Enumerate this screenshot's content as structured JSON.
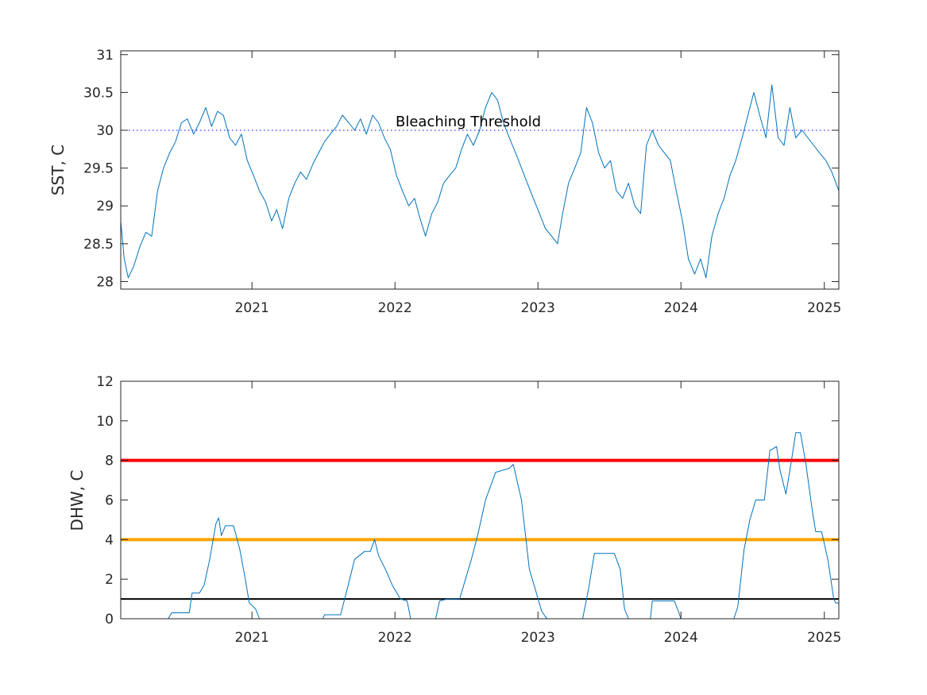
{
  "chart_data": [
    {
      "type": "line",
      "ylabel": "SST, C",
      "xlabel": "",
      "xlim": [
        "2020-02-01",
        "2025-02-07"
      ],
      "ylim": [
        27.9,
        31.05
      ],
      "yticks": [
        28,
        28.5,
        29,
        29.5,
        30,
        30.5,
        31
      ],
      "ytick_labels": [
        "28",
        "28.5",
        "29",
        "29.5",
        "30",
        "30.5",
        "31"
      ],
      "xticks": [
        "2021-01-01",
        "2022-01-01",
        "2023-01-01",
        "2024-01-01",
        "2025-01-01"
      ],
      "xtick_labels": [
        "2021",
        "2022",
        "2023",
        "2024",
        "2025"
      ],
      "grid": false,
      "threshold": {
        "y": 30,
        "style": "dotted",
        "color": "#0000ff",
        "label": "Bleaching Threshold"
      },
      "series": [
        {
          "color": "#0072bd",
          "points": [
            [
              "2020-02-01",
              28.8
            ],
            [
              "2020-02-10",
              28.3
            ],
            [
              "2020-02-20",
              28.05
            ],
            [
              "2020-03-05",
              28.2
            ],
            [
              "2020-03-20",
              28.45
            ],
            [
              "2020-04-05",
              28.65
            ],
            [
              "2020-04-20",
              28.6
            ],
            [
              "2020-05-05",
              29.2
            ],
            [
              "2020-05-20",
              29.5
            ],
            [
              "2020-06-05",
              29.7
            ],
            [
              "2020-06-20",
              29.85
            ],
            [
              "2020-07-05",
              30.1
            ],
            [
              "2020-07-20",
              30.15
            ],
            [
              "2020-08-05",
              29.95
            ],
            [
              "2020-08-20",
              30.1
            ],
            [
              "2020-09-05",
              30.3
            ],
            [
              "2020-09-20",
              30.05
            ],
            [
              "2020-10-05",
              30.25
            ],
            [
              "2020-10-20",
              30.2
            ],
            [
              "2020-11-05",
              29.9
            ],
            [
              "2020-11-20",
              29.8
            ],
            [
              "2020-12-05",
              29.95
            ],
            [
              "2020-12-20",
              29.6
            ],
            [
              "2021-01-05",
              29.4
            ],
            [
              "2021-01-20",
              29.2
            ],
            [
              "2021-02-05",
              29.05
            ],
            [
              "2021-02-20",
              28.8
            ],
            [
              "2021-03-05",
              28.95
            ],
            [
              "2021-03-20",
              28.7
            ],
            [
              "2021-04-05",
              29.1
            ],
            [
              "2021-04-20",
              29.3
            ],
            [
              "2021-05-05",
              29.45
            ],
            [
              "2021-05-20",
              29.35
            ],
            [
              "2021-06-05",
              29.55
            ],
            [
              "2021-06-20",
              29.7
            ],
            [
              "2021-07-05",
              29.85
            ],
            [
              "2021-07-20",
              29.95
            ],
            [
              "2021-08-05",
              30.05
            ],
            [
              "2021-08-20",
              30.2
            ],
            [
              "2021-09-05",
              30.1
            ],
            [
              "2021-09-20",
              30.0
            ],
            [
              "2021-10-05",
              30.15
            ],
            [
              "2021-10-20",
              29.95
            ],
            [
              "2021-11-05",
              30.2
            ],
            [
              "2021-11-20",
              30.1
            ],
            [
              "2021-12-05",
              29.9
            ],
            [
              "2021-12-20",
              29.75
            ],
            [
              "2022-01-05",
              29.4
            ],
            [
              "2022-01-20",
              29.2
            ],
            [
              "2022-02-05",
              29.0
            ],
            [
              "2022-02-20",
              29.1
            ],
            [
              "2022-03-05",
              28.85
            ],
            [
              "2022-03-20",
              28.6
            ],
            [
              "2022-04-05",
              28.9
            ],
            [
              "2022-04-20",
              29.05
            ],
            [
              "2022-05-05",
              29.3
            ],
            [
              "2022-05-20",
              29.4
            ],
            [
              "2022-06-05",
              29.5
            ],
            [
              "2022-06-20",
              29.75
            ],
            [
              "2022-07-05",
              29.95
            ],
            [
              "2022-07-20",
              29.8
            ],
            [
              "2022-08-05",
              30.0
            ],
            [
              "2022-08-20",
              30.3
            ],
            [
              "2022-09-05",
              30.5
            ],
            [
              "2022-09-20",
              30.4
            ],
            [
              "2022-10-05",
              30.1
            ],
            [
              "2022-10-20",
              29.9
            ],
            [
              "2022-11-05",
              29.7
            ],
            [
              "2022-11-20",
              29.5
            ],
            [
              "2022-12-05",
              29.3
            ],
            [
              "2022-12-20",
              29.1
            ],
            [
              "2023-01-05",
              28.9
            ],
            [
              "2023-01-20",
              28.7
            ],
            [
              "2023-02-05",
              28.6
            ],
            [
              "2023-02-20",
              28.5
            ],
            [
              "2023-03-05",
              28.9
            ],
            [
              "2023-03-20",
              29.3
            ],
            [
              "2023-04-05",
              29.5
            ],
            [
              "2023-04-20",
              29.7
            ],
            [
              "2023-05-05",
              30.3
            ],
            [
              "2023-05-20",
              30.1
            ],
            [
              "2023-06-05",
              29.7
            ],
            [
              "2023-06-20",
              29.5
            ],
            [
              "2023-07-05",
              29.6
            ],
            [
              "2023-07-20",
              29.2
            ],
            [
              "2023-08-05",
              29.1
            ],
            [
              "2023-08-20",
              29.3
            ],
            [
              "2023-09-05",
              29.0
            ],
            [
              "2023-09-20",
              28.9
            ],
            [
              "2023-10-05",
              29.8
            ],
            [
              "2023-10-20",
              30.0
            ],
            [
              "2023-11-05",
              29.8
            ],
            [
              "2023-11-20",
              29.7
            ],
            [
              "2023-12-05",
              29.6
            ],
            [
              "2023-12-20",
              29.2
            ],
            [
              "2024-01-05",
              28.8
            ],
            [
              "2024-01-20",
              28.3
            ],
            [
              "2024-02-05",
              28.1
            ],
            [
              "2024-02-20",
              28.3
            ],
            [
              "2024-03-05",
              28.05
            ],
            [
              "2024-03-20",
              28.6
            ],
            [
              "2024-04-05",
              28.9
            ],
            [
              "2024-04-20",
              29.1
            ],
            [
              "2024-05-05",
              29.4
            ],
            [
              "2024-05-20",
              29.6
            ],
            [
              "2024-06-05",
              29.9
            ],
            [
              "2024-06-20",
              30.2
            ],
            [
              "2024-07-05",
              30.5
            ],
            [
              "2024-07-20",
              30.2
            ],
            [
              "2024-08-05",
              29.9
            ],
            [
              "2024-08-20",
              30.6
            ],
            [
              "2024-09-05",
              29.9
            ],
            [
              "2024-09-20",
              29.8
            ],
            [
              "2024-10-05",
              30.3
            ],
            [
              "2024-10-20",
              29.9
            ],
            [
              "2024-11-05",
              30.0
            ],
            [
              "2024-11-20",
              29.9
            ],
            [
              "2024-12-05",
              29.8
            ],
            [
              "2024-12-20",
              29.7
            ],
            [
              "2025-01-05",
              29.6
            ],
            [
              "2025-01-20",
              29.45
            ],
            [
              "2025-02-07",
              29.2
            ]
          ]
        }
      ]
    },
    {
      "type": "line",
      "ylabel": "DHW, C",
      "xlabel": "",
      "xlim": [
        "2020-02-01",
        "2025-02-07"
      ],
      "ylim": [
        0,
        12
      ],
      "yticks": [
        0,
        2,
        4,
        6,
        8,
        10,
        12
      ],
      "ytick_labels": [
        "0",
        "2",
        "4",
        "6",
        "8",
        "10",
        "12"
      ],
      "xticks": [
        "2021-01-01",
        "2022-01-01",
        "2023-01-01",
        "2024-01-01",
        "2025-01-01"
      ],
      "xtick_labels": [
        "2021",
        "2022",
        "2023",
        "2024",
        "2025"
      ],
      "grid": false,
      "reference_lines": [
        {
          "y": 8,
          "color": "#ff0000"
        },
        {
          "y": 4,
          "color": "#ffa500"
        },
        {
          "y": 1,
          "color": "#000000"
        }
      ],
      "series": [
        {
          "color": "#0072bd",
          "points": [
            [
              "2020-02-01",
              0
            ],
            [
              "2020-06-01",
              0
            ],
            [
              "2020-06-10",
              0.3
            ],
            [
              "2020-07-25",
              0.3
            ],
            [
              "2020-08-01",
              1.3
            ],
            [
              "2020-08-20",
              1.3
            ],
            [
              "2020-09-01",
              1.7
            ],
            [
              "2020-09-15",
              3.0
            ],
            [
              "2020-10-01",
              4.8
            ],
            [
              "2020-10-08",
              5.1
            ],
            [
              "2020-10-15",
              4.2
            ],
            [
              "2020-10-25",
              4.7
            ],
            [
              "2020-11-15",
              4.7
            ],
            [
              "2020-12-01",
              3.5
            ],
            [
              "2020-12-15",
              2.0
            ],
            [
              "2020-12-25",
              0.8
            ],
            [
              "2021-01-10",
              0.5
            ],
            [
              "2021-01-20",
              0
            ],
            [
              "2021-07-01",
              0
            ],
            [
              "2021-07-05",
              0.2
            ],
            [
              "2021-08-15",
              0.2
            ],
            [
              "2021-09-01",
              1.5
            ],
            [
              "2021-09-20",
              3.0
            ],
            [
              "2021-10-15",
              3.4
            ],
            [
              "2021-10-30",
              3.4
            ],
            [
              "2021-11-10",
              4.0
            ],
            [
              "2021-11-20",
              3.2
            ],
            [
              "2021-12-10",
              2.4
            ],
            [
              "2021-12-25",
              1.7
            ],
            [
              "2022-01-15",
              1.0
            ],
            [
              "2022-02-01",
              0.9
            ],
            [
              "2022-02-10",
              0
            ],
            [
              "2022-04-15",
              0
            ],
            [
              "2022-04-25",
              0.9
            ],
            [
              "2022-05-15",
              1.0
            ],
            [
              "2022-06-15",
              1.0
            ],
            [
              "2022-07-15",
              3.0
            ],
            [
              "2022-08-01",
              4.3
            ],
            [
              "2022-08-20",
              6.0
            ],
            [
              "2022-09-15",
              7.4
            ],
            [
              "2022-10-20",
              7.6
            ],
            [
              "2022-10-30",
              7.8
            ],
            [
              "2022-11-20",
              6.0
            ],
            [
              "2022-12-10",
              2.5
            ],
            [
              "2022-12-25",
              1.5
            ],
            [
              "2023-01-10",
              0.4
            ],
            [
              "2023-01-20",
              0.1
            ],
            [
              "2023-01-25",
              0
            ],
            [
              "2023-04-25",
              0
            ],
            [
              "2023-05-10",
              1.5
            ],
            [
              "2023-05-25",
              3.3
            ],
            [
              "2023-07-15",
              3.3
            ],
            [
              "2023-07-30",
              2.5
            ],
            [
              "2023-08-10",
              0.5
            ],
            [
              "2023-08-20",
              0
            ],
            [
              "2023-10-15",
              0
            ],
            [
              "2023-10-20",
              0.9
            ],
            [
              "2023-12-15",
              0.9
            ],
            [
              "2023-12-25",
              0.4
            ],
            [
              "2024-01-01",
              0
            ],
            [
              "2024-05-15",
              0
            ],
            [
              "2024-05-25",
              0.6
            ],
            [
              "2024-06-10",
              3.5
            ],
            [
              "2024-06-25",
              5.0
            ],
            [
              "2024-07-10",
              6.0
            ],
            [
              "2024-08-01",
              6.0
            ],
            [
              "2024-08-15",
              8.5
            ],
            [
              "2024-09-01",
              8.7
            ],
            [
              "2024-09-10",
              7.5
            ],
            [
              "2024-09-25",
              6.3
            ],
            [
              "2024-10-05",
              7.5
            ],
            [
              "2024-10-20",
              9.4
            ],
            [
              "2024-11-01",
              9.4
            ],
            [
              "2024-11-15",
              7.8
            ],
            [
              "2024-12-01",
              5.5
            ],
            [
              "2024-12-10",
              4.4
            ],
            [
              "2024-12-25",
              4.4
            ],
            [
              "2025-01-10",
              3.0
            ],
            [
              "2025-01-25",
              1.0
            ],
            [
              "2025-01-30",
              0.8
            ],
            [
              "2025-02-07",
              0.8
            ]
          ]
        }
      ]
    }
  ]
}
